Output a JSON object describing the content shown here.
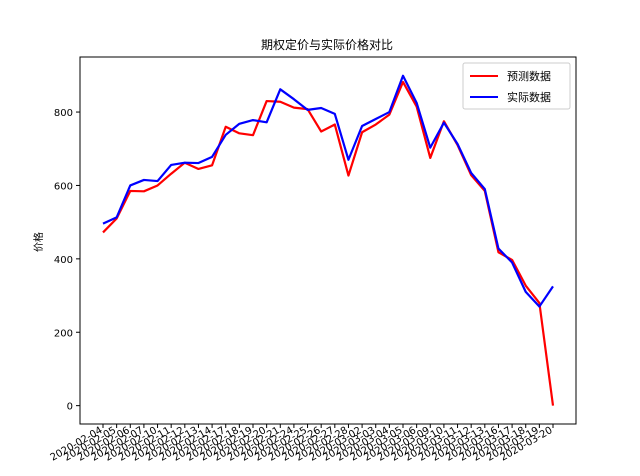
{
  "chart_data": {
    "type": "line",
    "title": "期权定价与实际价格对比",
    "xlabel": "",
    "ylabel": "价格",
    "ylim": [
      -50,
      950
    ],
    "yticks": [
      0,
      200,
      400,
      600,
      800
    ],
    "grid": false,
    "legend_position": "top-right",
    "categories": [
      "2020-02-04",
      "2020-02-05",
      "2020-02-06",
      "2020-02-07",
      "2020-02-10",
      "2020-02-11",
      "2020-02-12",
      "2020-02-13",
      "2020-02-14",
      "2020-02-17",
      "2020-02-18",
      "2020-02-19",
      "2020-02-20",
      "2020-02-21",
      "2020-02-24",
      "2020-02-25",
      "2020-02-26",
      "2020-02-27",
      "2020-02-28",
      "2020-03-02",
      "2020-03-03",
      "2020-03-04",
      "2020-03-05",
      "2020-03-06",
      "2020-03-09",
      "2020-03-10",
      "2020-03-11",
      "2020-03-12",
      "2020-03-13",
      "2020-03-16",
      "2020-03-17",
      "2020-03-18",
      "2020-03-19",
      "2020-03-20"
    ],
    "series": [
      {
        "name": "预测数据",
        "color": "#ff0000",
        "values": [
          472,
          510,
          585,
          584,
          600,
          632,
          662,
          645,
          655,
          760,
          742,
          737,
          830,
          828,
          812,
          808,
          747,
          766,
          627,
          745,
          766,
          793,
          882,
          815,
          675,
          775,
          710,
          628,
          585,
          418,
          397,
          327,
          280,
          0
        ]
      },
      {
        "name": "实际数据",
        "color": "#0000ff",
        "values": [
          496,
          513,
          600,
          615,
          612,
          656,
          662,
          661,
          678,
          738,
          768,
          778,
          772,
          862,
          835,
          806,
          811,
          795,
          670,
          762,
          781,
          800,
          899,
          825,
          703,
          771,
          713,
          634,
          590,
          428,
          390,
          310,
          270,
          325
        ]
      }
    ]
  }
}
